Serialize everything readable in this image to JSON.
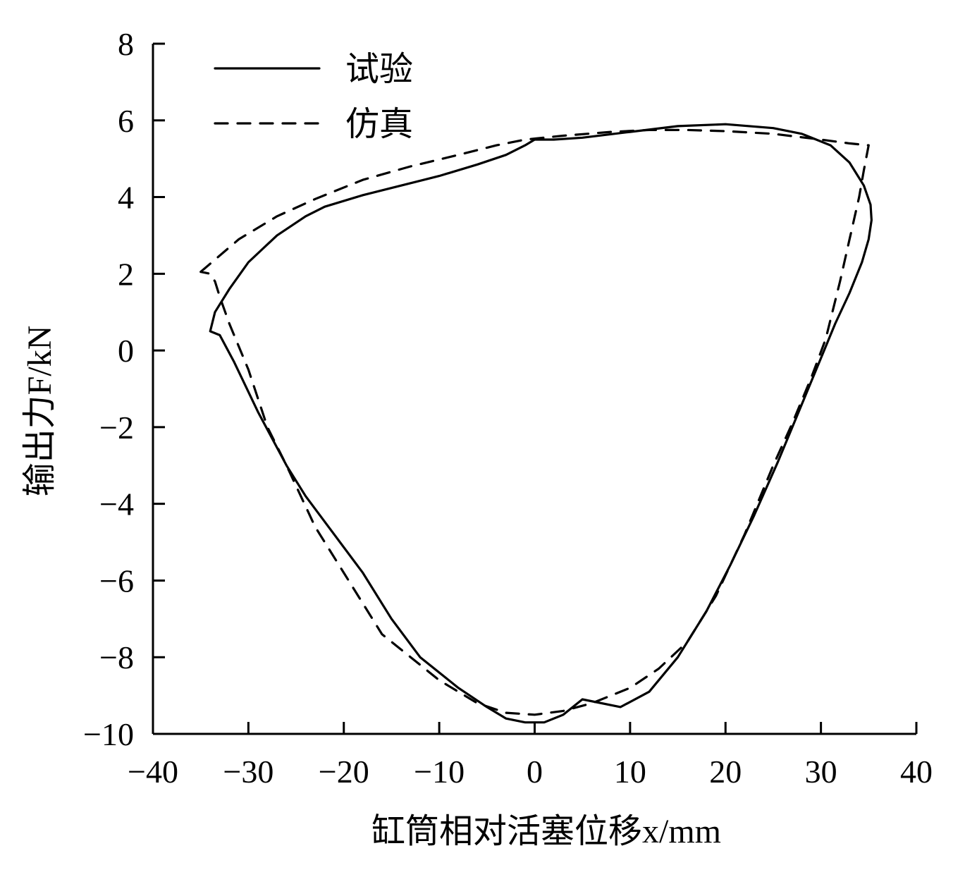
{
  "chart_data": {
    "type": "line",
    "xlabel": "缸筒相对活塞位移x/mm",
    "ylabel": "输出力F/kN",
    "xlim": [
      -40,
      40
    ],
    "ylim": [
      -10,
      8
    ],
    "xticks": [
      -40,
      -30,
      -20,
      -10,
      0,
      10,
      20,
      30,
      40
    ],
    "yticks": [
      8,
      6,
      4,
      2,
      0,
      -2,
      -4,
      -6,
      -8,
      -10
    ],
    "xtick_labels": [
      "−40",
      "−30",
      "−20",
      "−10",
      "0",
      "10",
      "20",
      "30",
      "40"
    ],
    "ytick_labels": [
      "8",
      "6",
      "4",
      "2",
      "0",
      "−2",
      "−4",
      "−6",
      "−8",
      "−10"
    ],
    "grid": false,
    "legend_position": "top-left",
    "series": [
      {
        "name": "试验",
        "style": "solid",
        "color": "#000000",
        "points": [
          [
            0,
            5.5
          ],
          [
            2,
            5.5
          ],
          [
            5,
            5.55
          ],
          [
            10,
            5.7
          ],
          [
            15,
            5.85
          ],
          [
            20,
            5.9
          ],
          [
            25,
            5.8
          ],
          [
            28,
            5.65
          ],
          [
            31,
            5.35
          ],
          [
            33,
            4.9
          ],
          [
            34.5,
            4.3
          ],
          [
            35.2,
            3.8
          ],
          [
            35.3,
            3.4
          ],
          [
            35,
            2.9
          ],
          [
            34.3,
            2.3
          ],
          [
            33,
            1.5
          ],
          [
            31.5,
            0.7
          ],
          [
            29.5,
            -0.5
          ],
          [
            27.5,
            -1.7
          ],
          [
            25.5,
            -2.9
          ],
          [
            23,
            -4.3
          ],
          [
            20.5,
            -5.6
          ],
          [
            18,
            -6.8
          ],
          [
            15,
            -8.0
          ],
          [
            12,
            -8.9
          ],
          [
            9,
            -9.3
          ],
          [
            5,
            -9.1
          ],
          [
            3,
            -9.5
          ],
          [
            1,
            -9.7
          ],
          [
            -1,
            -9.7
          ],
          [
            -3,
            -9.6
          ],
          [
            -5,
            -9.3
          ],
          [
            -8,
            -8.8
          ],
          [
            -12,
            -8.0
          ],
          [
            -15,
            -7.0
          ],
          [
            -18,
            -5.8
          ],
          [
            -21,
            -4.8
          ],
          [
            -24,
            -3.8
          ],
          [
            -26,
            -3.0
          ],
          [
            -29,
            -1.6
          ],
          [
            -31.5,
            -0.3
          ],
          [
            -33,
            0.4
          ],
          [
            -34,
            0.5
          ],
          [
            -33.5,
            1.0
          ],
          [
            -32,
            1.6
          ],
          [
            -30,
            2.3
          ],
          [
            -27,
            3.0
          ],
          [
            -24,
            3.5
          ],
          [
            -22,
            3.75
          ],
          [
            -18,
            4.05
          ],
          [
            -14,
            4.3
          ],
          [
            -10,
            4.55
          ],
          [
            -6,
            4.85
          ],
          [
            -3,
            5.1
          ],
          [
            -1,
            5.35
          ],
          [
            0,
            5.5
          ]
        ]
      },
      {
        "name": "仿真",
        "style": "dashed",
        "color": "#000000",
        "points": [
          [
            -35,
            2.05
          ],
          [
            -31,
            2.9
          ],
          [
            -27,
            3.5
          ],
          [
            -23,
            3.95
          ],
          [
            -18,
            4.45
          ],
          [
            -13,
            4.8
          ],
          [
            -8,
            5.1
          ],
          [
            -4,
            5.35
          ],
          [
            -1,
            5.5
          ],
          [
            3,
            5.6
          ],
          [
            8,
            5.7
          ],
          [
            12,
            5.75
          ],
          [
            16,
            5.75
          ],
          [
            20,
            5.72
          ],
          [
            25,
            5.65
          ],
          [
            30,
            5.5
          ],
          [
            33,
            5.4
          ],
          [
            35,
            5.35
          ],
          [
            34.5,
            4.7
          ],
          [
            34,
            4.0
          ],
          [
            33,
            2.9
          ],
          [
            32,
            1.8
          ],
          [
            30.5,
            0.3
          ],
          [
            29,
            -0.7
          ],
          [
            27,
            -1.9
          ],
          [
            25,
            -3.0
          ],
          [
            22,
            -4.8
          ],
          [
            19,
            -6.4
          ],
          [
            16,
            -7.6
          ],
          [
            13,
            -8.3
          ],
          [
            10,
            -8.8
          ],
          [
            6,
            -9.2
          ],
          [
            3,
            -9.4
          ],
          [
            0,
            -9.5
          ],
          [
            -3,
            -9.45
          ],
          [
            -6,
            -9.2
          ],
          [
            -10,
            -8.6
          ],
          [
            -13,
            -8.0
          ],
          [
            -16,
            -7.4
          ],
          [
            -20,
            -5.8
          ],
          [
            -23,
            -4.6
          ],
          [
            -26,
            -3.0
          ],
          [
            -28,
            -2.0
          ],
          [
            -30,
            -0.5
          ],
          [
            -32,
            0.7
          ],
          [
            -33,
            1.4
          ],
          [
            -33.5,
            1.8
          ],
          [
            -34,
            2.0
          ],
          [
            -35,
            2.05
          ]
        ]
      }
    ]
  }
}
